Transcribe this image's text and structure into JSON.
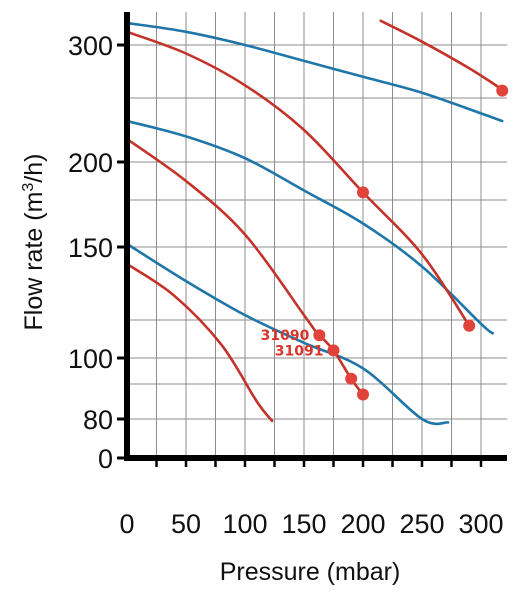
{
  "chart_data": {
    "type": "line",
    "title": "",
    "xlabel": "Pressure (mbar)",
    "ylabel_main": "Flow rate  (m",
    "ylabel_sup": "3",
    "ylabel_tail": "/h)",
    "xlim": [
      0,
      320
    ],
    "x_ticks": [
      0,
      50,
      100,
      150,
      200,
      250,
      300
    ],
    "x_tick_labels": [
      "0",
      "50",
      "100",
      "150",
      "200",
      "250",
      "300"
    ],
    "y_ticks": [
      0,
      80,
      100,
      150,
      200,
      300
    ],
    "y_tick_labels": [
      "0",
      "80",
      "100",
      "150",
      "200",
      "300"
    ],
    "y_grid": [
      80,
      90,
      100,
      120,
      150,
      180,
      200,
      250,
      300
    ],
    "grid": true,
    "colors": {
      "blue": "#1f76a8",
      "red": "#c4332a",
      "point": "#e0433a",
      "axis": "#000000",
      "grid": "#8c8c8c"
    },
    "blue_series": [
      {
        "points": [
          [
            0,
            320
          ],
          [
            50,
            312
          ],
          [
            100,
            300
          ],
          [
            150,
            285
          ],
          [
            200,
            270
          ],
          [
            250,
            255
          ],
          [
            300,
            238
          ],
          [
            318,
            232
          ]
        ]
      },
      {
        "points": [
          [
            0,
            232
          ],
          [
            50,
            220
          ],
          [
            100,
            203
          ],
          [
            150,
            185
          ],
          [
            200,
            165
          ],
          [
            250,
            142
          ],
          [
            300,
            118
          ],
          [
            310,
            113
          ]
        ]
      },
      {
        "points": [
          [
            0,
            152
          ],
          [
            50,
            136
          ],
          [
            100,
            122
          ],
          [
            150,
            108
          ],
          [
            200,
            96
          ],
          [
            250,
            80
          ],
          [
            272,
            73
          ]
        ]
      }
    ],
    "red_series": [
      {
        "points": [
          [
            215,
            322
          ],
          [
            250,
            303
          ],
          [
            290,
            278
          ],
          [
            318,
            258
          ]
        ]
      },
      {
        "points": [
          [
            0,
            312
          ],
          [
            50,
            292
          ],
          [
            100,
            262
          ],
          [
            150,
            225
          ],
          [
            200,
            184
          ],
          [
            250,
            147
          ],
          [
            290,
            117
          ]
        ]
      },
      {
        "points": [
          [
            0,
            218
          ],
          [
            50,
            190
          ],
          [
            100,
            158
          ],
          [
            150,
            122
          ],
          [
            162,
            112
          ]
        ]
      },
      {
        "points": [
          [
            0,
            143
          ],
          [
            40,
            130
          ],
          [
            80,
            107
          ],
          [
            110,
            85
          ],
          [
            123,
            76
          ]
        ]
      },
      {
        "points": [
          [
            163,
            112
          ],
          [
            175,
            104
          ],
          [
            190,
            92
          ],
          [
            200,
            87
          ]
        ]
      }
    ],
    "markers": [
      [
        318,
        257
      ],
      [
        200,
        184
      ],
      [
        290,
        117
      ],
      [
        163,
        112
      ],
      [
        175,
        104
      ],
      [
        190,
        92
      ],
      [
        200,
        87
      ]
    ],
    "point_labels": [
      {
        "text": "31090",
        "x": 163,
        "y": 112
      },
      {
        "text": "31091",
        "x": 175,
        "y": 104
      }
    ]
  }
}
